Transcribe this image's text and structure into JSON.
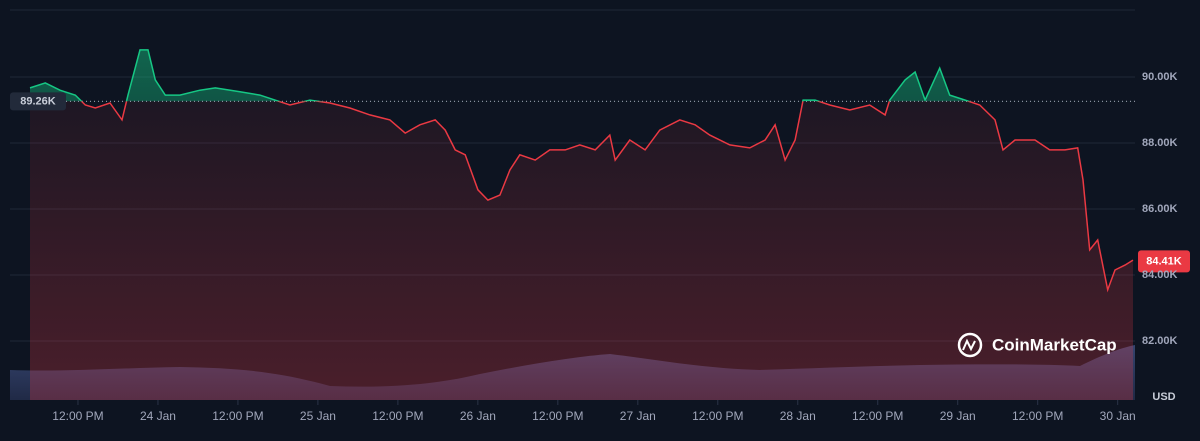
{
  "chart_data": {
    "type": "line",
    "x": [
      4.8,
      7.1,
      9.3,
      11.6,
      13.1,
      14.6,
      16.8,
      18.6,
      19.5,
      21.3,
      22.5,
      23.6,
      25.1,
      27.3,
      30.3,
      32.6,
      36.3,
      39.3,
      43.8,
      46.8,
      49.8,
      52.8,
      55.8,
      58.8,
      61.1,
      63.3,
      65.6,
      67.1,
      68.6,
      70.1,
      72,
      73.5,
      75.3,
      76.8,
      78.3,
      80.6,
      82.8,
      85.1,
      87.3,
      89.6,
      91.8,
      92.6,
      94.8,
      97.1,
      99.3,
      102.3,
      104.6,
      106.8,
      109.8,
      112.8,
      115.1,
      116.6,
      118.1,
      119.6,
      120.8,
      122.6,
      124.8,
      127.8,
      130.8,
      133.1,
      133.8,
      136.1,
      137.6,
      139.1,
      141.3,
      142.8,
      145.1,
      147.3,
      149.6,
      150.8,
      152.6,
      155.6,
      157.8,
      160.1,
      162,
      162.8,
      163.8,
      165,
      166.5,
      167.6,
      169.1,
      170.3
    ],
    "values": [
      89670,
      89820,
      89600,
      89450,
      89150,
      89060,
      89210,
      88700,
      89450,
      90820,
      90820,
      89910,
      89450,
      89450,
      89600,
      89670,
      89550,
      89450,
      89150,
      89300,
      89210,
      89060,
      88850,
      88700,
      88300,
      88550,
      88700,
      88390,
      87790,
      87640,
      86580,
      86270,
      86420,
      87180,
      87640,
      87480,
      87790,
      87790,
      87940,
      87790,
      88240,
      87480,
      88090,
      87790,
      88390,
      88700,
      88550,
      88240,
      87940,
      87850,
      88090,
      88550,
      87480,
      88090,
      89300,
      89300,
      89150,
      89000,
      89150,
      88850,
      89300,
      89910,
      90150,
      89300,
      90270,
      89450,
      89300,
      89150,
      88700,
      87790,
      88090,
      88090,
      87790,
      87790,
      87850,
      86880,
      84760,
      85060,
      83550,
      84150,
      84300,
      84450
    ],
    "up_color": "#16c784",
    "down_color": "#ea3943",
    "xlim": [
      1.8,
      170.6
    ],
    "xticks": [
      {
        "value": 12,
        "label": "12:00 PM"
      },
      {
        "value": 24,
        "label": "24 Jan"
      },
      {
        "value": 36,
        "label": "12:00 PM"
      },
      {
        "value": 48,
        "label": "25 Jan"
      },
      {
        "value": 60,
        "label": "12:00 PM"
      },
      {
        "value": 72,
        "label": "26 Jan"
      },
      {
        "value": 84,
        "label": "12:00 PM"
      },
      {
        "value": 96,
        "label": "27 Jan"
      },
      {
        "value": 108,
        "label": "12:00 PM"
      },
      {
        "value": 120,
        "label": "28 Jan"
      },
      {
        "value": 132,
        "label": "12:00 PM"
      },
      {
        "value": 144,
        "label": "29 Jan"
      },
      {
        "value": 156,
        "label": "12:00 PM"
      },
      {
        "value": 168,
        "label": "30 Jan"
      }
    ],
    "ylim": [
      80210,
      92030
    ],
    "yticks": [
      {
        "value": 82000,
        "label": "82.00K"
      },
      {
        "value": 84000,
        "label": "84.00K"
      },
      {
        "value": 86000,
        "label": "86.00K"
      },
      {
        "value": 88000,
        "label": "88.00K"
      },
      {
        "value": 90000,
        "label": "90.00K"
      }
    ],
    "reference": {
      "value": 89260,
      "label": "89.26K"
    },
    "last": {
      "value": 84410,
      "label": "84.41K"
    },
    "currency_label": "USD",
    "watermark": "CoinMarketCap",
    "grid": true
  }
}
